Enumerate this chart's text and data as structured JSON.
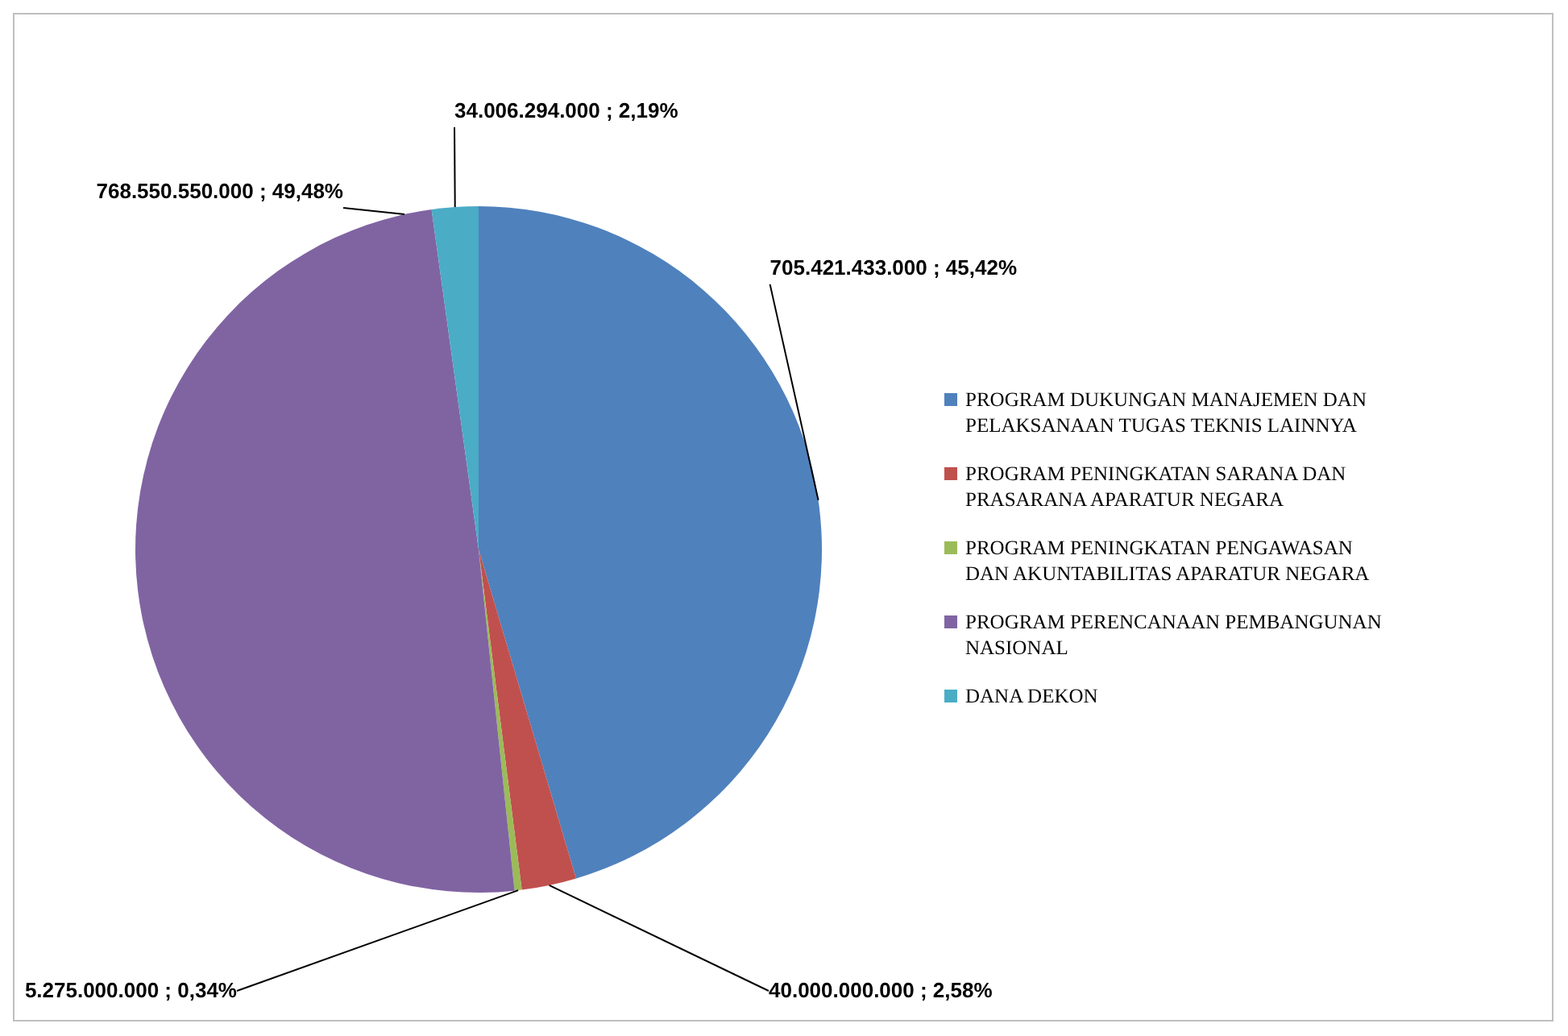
{
  "chart_data": {
    "type": "pie",
    "categories": [
      "PROGRAM DUKUNGAN MANAJEMEN DAN PELAKSANAAN TUGAS TEKNIS LAINNYA",
      "PROGRAM PENINGKATAN SARANA DAN PRASARANA APARATUR NEGARA",
      "PROGRAM PENINGKATAN PENGAWASAN DAN AKUNTABILITAS APARATUR NEGARA",
      "PROGRAM PERENCANAAN PEMBANGUNAN NASIONAL",
      "DANA DEKON"
    ],
    "values": [
      705421433000,
      40000000000,
      5275000000,
      768550550000,
      34006294000
    ],
    "value_labels": [
      "705.421.433.000 ; 45,42%",
      "40.000.000.000 ; 2,58%",
      "5.275.000.000 ; 0,34%",
      "768.550.550.000 ; 49,48%",
      "34.006.294.000 ; 2,19%"
    ],
    "colors": [
      "#4f81bd",
      "#c0504d",
      "#9bbb59",
      "#8064a2",
      "#4bacc6"
    ],
    "legend": "right"
  }
}
